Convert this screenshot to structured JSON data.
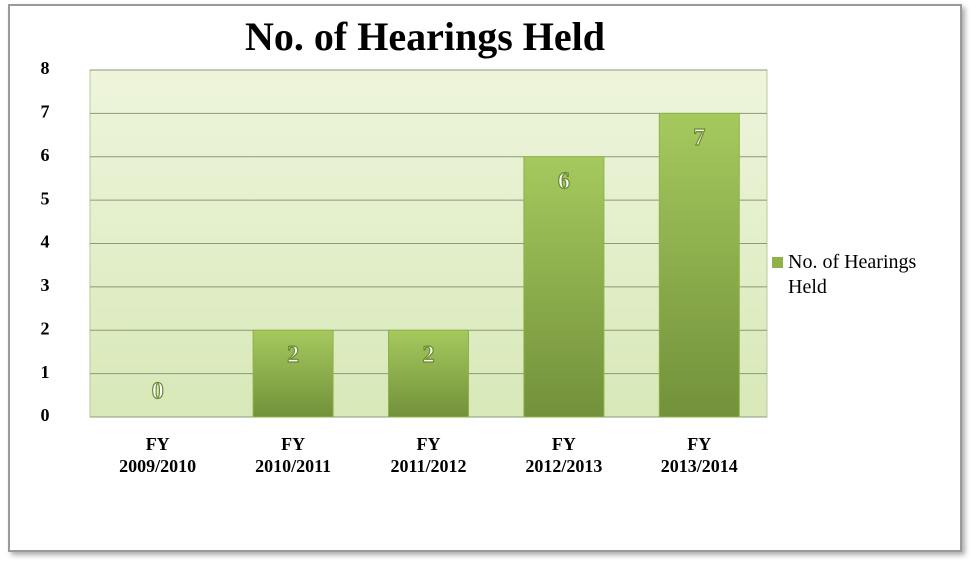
{
  "chart_data": {
    "type": "bar",
    "title": "No. of Hearings Held",
    "categories": [
      "FY 2009/2010",
      "FY 2010/2011",
      "FY 2011/2012",
      "FY 2012/2013",
      "FY 2013/2014"
    ],
    "series": [
      {
        "name": "No. of Hearings Held",
        "color": "#8db348",
        "values": [
          0,
          2,
          2,
          6,
          7
        ]
      }
    ],
    "ylim": [
      0,
      8
    ],
    "yticks": [
      0,
      1,
      2,
      3,
      4,
      5,
      6,
      7,
      8
    ],
    "grid": true,
    "legend": "right"
  }
}
